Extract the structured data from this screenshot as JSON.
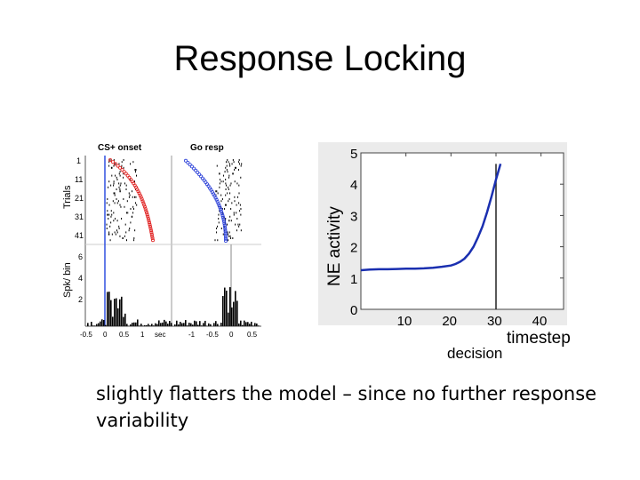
{
  "slide": {
    "title": "Response Locking",
    "body": "slightly flatters the model – since no further response variability"
  },
  "raster_figure": {
    "panels": [
      {
        "title": "CS+ onset",
        "xticks": [
          "-0.5",
          "0",
          "0.5",
          "1",
          "sec"
        ]
      },
      {
        "title": "Go resp",
        "xticks": [
          "-1",
          "-0.5",
          "0",
          "0.5"
        ]
      }
    ],
    "ylabel_top": "Trials",
    "ylabel_bottom": "Spk/ bin",
    "trial_ticks": [
      "1",
      "11",
      "21",
      "31",
      "41"
    ],
    "count_ticks": [
      "6",
      "4",
      "2"
    ],
    "colors": {
      "cs_marker": "#e02020",
      "go_marker": "#2a3fd8",
      "onset_line": "#3050e0"
    }
  },
  "chart_data": {
    "type": "line",
    "ylabel": "NE activity",
    "xlabel": "timestep",
    "annotation": "decision",
    "xlim": [
      0,
      45
    ],
    "ylim": [
      0,
      5
    ],
    "xticks": [
      10,
      20,
      30,
      40
    ],
    "yticks": [
      0,
      1,
      2,
      3,
      4,
      5
    ],
    "decision_x": 30,
    "line_color": "#1a2fb0",
    "series": [
      {
        "x": [
          0,
          2,
          4,
          6,
          8,
          10,
          12,
          14,
          16,
          18,
          20,
          21,
          22,
          23,
          24,
          25,
          26,
          27,
          28,
          29,
          30,
          31
        ],
        "values": [
          1.25,
          1.27,
          1.28,
          1.28,
          1.29,
          1.3,
          1.3,
          1.31,
          1.33,
          1.36,
          1.4,
          1.45,
          1.52,
          1.62,
          1.78,
          2.0,
          2.3,
          2.65,
          3.1,
          3.6,
          4.15,
          4.65
        ]
      }
    ]
  }
}
